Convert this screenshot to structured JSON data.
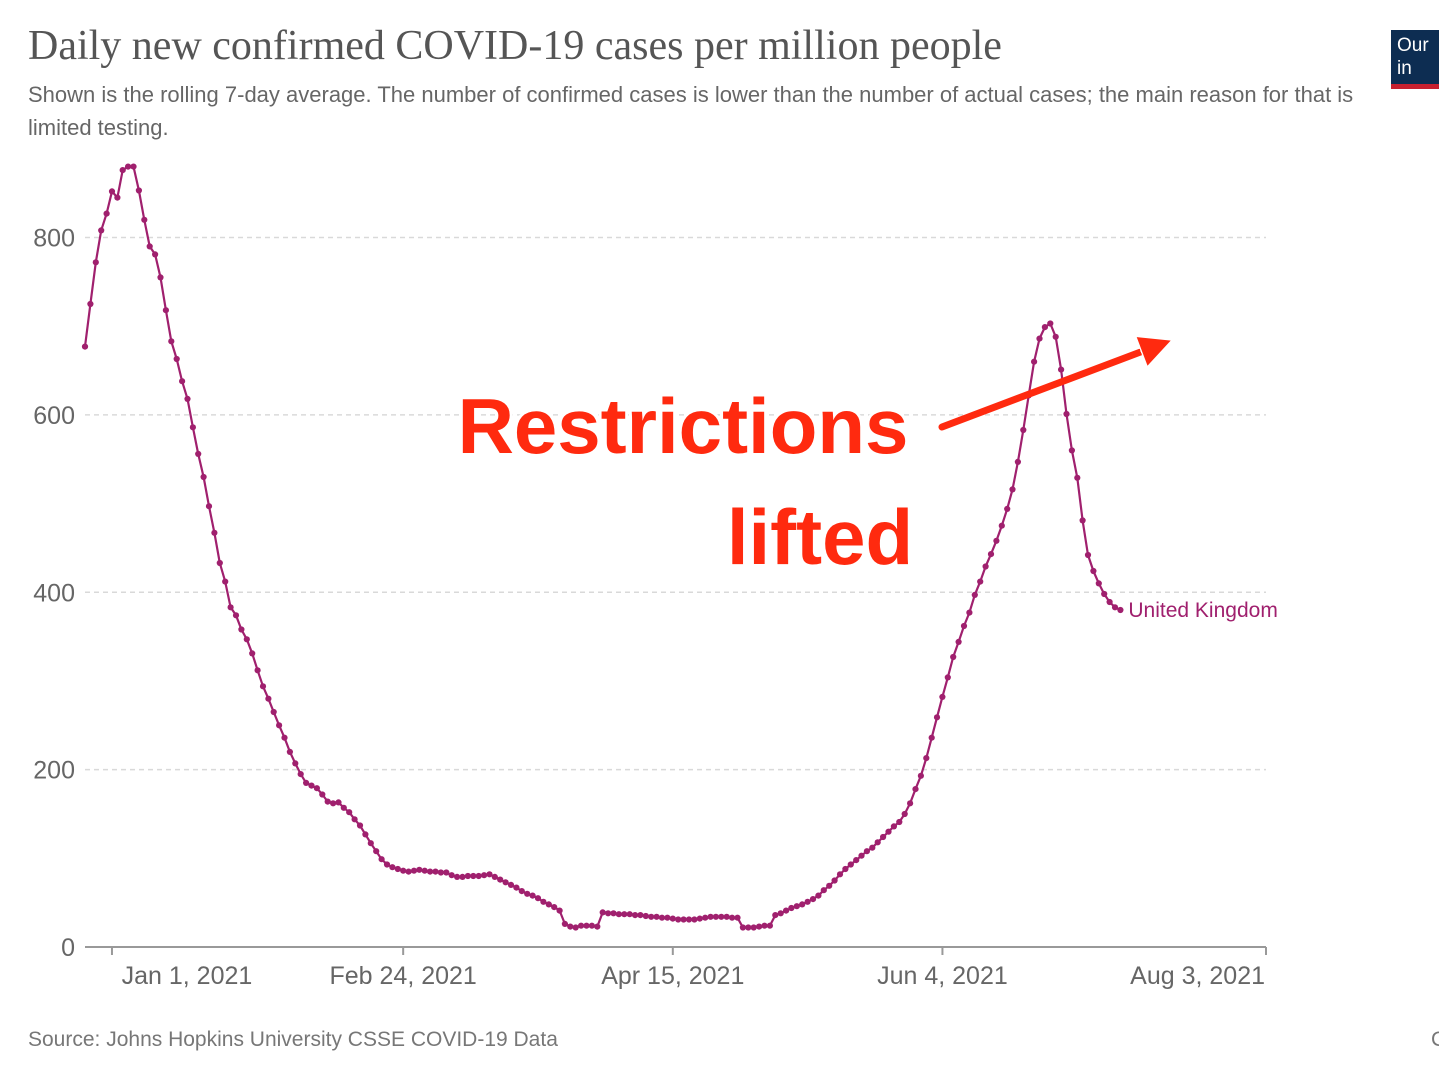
{
  "header": {
    "title": "Daily new confirmed COVID-19 cases per million people",
    "subtitle": "Shown is the rolling 7-day average. The number of confirmed cases is lower than the number of actual cases; the main reason for that is limited testing.",
    "logo_line1": "Our",
    "logo_line2": "in",
    "logo_colors": {
      "background": "#0d2d52",
      "stripe": "#c8202f"
    }
  },
  "footer": {
    "source": "Source: Johns Hopkins University CSSE COVID-19 Data",
    "corner": "C"
  },
  "annotation": {
    "line1": "Restrictions",
    "line2": "lifted",
    "color": "#ff2a0f",
    "arrow_target": {
      "date": "2021-07-17",
      "value": 703
    }
  },
  "chart_data": {
    "type": "line",
    "title": "Daily new confirmed COVID-19 cases per million people",
    "xlabel": "",
    "ylabel": "",
    "x_start": "2020-12-27",
    "x_end": "2021-08-03",
    "ylim": [
      0,
      880
    ],
    "y_ticks": [
      0,
      200,
      400,
      600,
      800
    ],
    "x_ticks": [
      {
        "date": "2021-01-01",
        "label": "Jan 1, 2021"
      },
      {
        "date": "2021-02-24",
        "label": "Feb 24, 2021"
      },
      {
        "date": "2021-04-15",
        "label": "Apr 15, 2021"
      },
      {
        "date": "2021-06-04",
        "label": "Jun 4, 2021"
      },
      {
        "date": "2021-08-03",
        "label": "Aug 3, 2021"
      }
    ],
    "grid": "horizontal-dashed",
    "series": [
      {
        "name": "United Kingdom",
        "color": "#a0206e",
        "points": [
          [
            "2020-12-27",
            677
          ],
          [
            "2020-12-28",
            725
          ],
          [
            "2020-12-29",
            772
          ],
          [
            "2020-12-30",
            808
          ],
          [
            "2020-12-31",
            827
          ],
          [
            "2021-01-01",
            852
          ],
          [
            "2021-01-02",
            845
          ],
          [
            "2021-01-03",
            876
          ],
          [
            "2021-01-04",
            880
          ],
          [
            "2021-01-05",
            880
          ],
          [
            "2021-01-06",
            853
          ],
          [
            "2021-01-07",
            820
          ],
          [
            "2021-01-08",
            790
          ],
          [
            "2021-01-09",
            781
          ],
          [
            "2021-01-10",
            755
          ],
          [
            "2021-01-11",
            718
          ],
          [
            "2021-01-12",
            683
          ],
          [
            "2021-01-13",
            663
          ],
          [
            "2021-01-14",
            638
          ],
          [
            "2021-01-15",
            618
          ],
          [
            "2021-01-16",
            586
          ],
          [
            "2021-01-17",
            556
          ],
          [
            "2021-01-18",
            530
          ],
          [
            "2021-01-19",
            497
          ],
          [
            "2021-01-20",
            467
          ],
          [
            "2021-01-21",
            433
          ],
          [
            "2021-01-22",
            412
          ],
          [
            "2021-01-23",
            383
          ],
          [
            "2021-01-24",
            374
          ],
          [
            "2021-01-25",
            358
          ],
          [
            "2021-01-26",
            347
          ],
          [
            "2021-01-27",
            331
          ],
          [
            "2021-01-28",
            312
          ],
          [
            "2021-01-29",
            294
          ],
          [
            "2021-01-30",
            280
          ],
          [
            "2021-01-31",
            265
          ],
          [
            "2021-02-01",
            250
          ],
          [
            "2021-02-02",
            236
          ],
          [
            "2021-02-03",
            220
          ],
          [
            "2021-02-04",
            207
          ],
          [
            "2021-02-05",
            195
          ],
          [
            "2021-02-06",
            185
          ],
          [
            "2021-02-07",
            182
          ],
          [
            "2021-02-08",
            179
          ],
          [
            "2021-02-09",
            172
          ],
          [
            "2021-02-10",
            164
          ],
          [
            "2021-02-11",
            162
          ],
          [
            "2021-02-12",
            163
          ],
          [
            "2021-02-13",
            157
          ],
          [
            "2021-02-14",
            152
          ],
          [
            "2021-02-15",
            144
          ],
          [
            "2021-02-16",
            137
          ],
          [
            "2021-02-17",
            127
          ],
          [
            "2021-02-18",
            117
          ],
          [
            "2021-02-19",
            108
          ],
          [
            "2021-02-20",
            99
          ],
          [
            "2021-02-21",
            93
          ],
          [
            "2021-02-22",
            90
          ],
          [
            "2021-02-23",
            88
          ],
          [
            "2021-02-24",
            86
          ],
          [
            "2021-02-25",
            85
          ],
          [
            "2021-02-26",
            86
          ],
          [
            "2021-02-27",
            87
          ],
          [
            "2021-02-28",
            86
          ],
          [
            "2021-03-01",
            85
          ],
          [
            "2021-03-02",
            85
          ],
          [
            "2021-03-03",
            84
          ],
          [
            "2021-03-04",
            84
          ],
          [
            "2021-03-05",
            81
          ],
          [
            "2021-03-06",
            79
          ],
          [
            "2021-03-07",
            79
          ],
          [
            "2021-03-08",
            80
          ],
          [
            "2021-03-09",
            80
          ],
          [
            "2021-03-10",
            80
          ],
          [
            "2021-03-11",
            81
          ],
          [
            "2021-03-12",
            82
          ],
          [
            "2021-03-13",
            79
          ],
          [
            "2021-03-14",
            76
          ],
          [
            "2021-03-15",
            73
          ],
          [
            "2021-03-16",
            70
          ],
          [
            "2021-03-17",
            67
          ],
          [
            "2021-03-18",
            63
          ],
          [
            "2021-03-19",
            60
          ],
          [
            "2021-03-20",
            58
          ],
          [
            "2021-03-21",
            55
          ],
          [
            "2021-03-22",
            51
          ],
          [
            "2021-03-23",
            48
          ],
          [
            "2021-03-24",
            45
          ],
          [
            "2021-03-25",
            41
          ],
          [
            "2021-03-26",
            26
          ],
          [
            "2021-03-27",
            23
          ],
          [
            "2021-03-28",
            22
          ],
          [
            "2021-03-29",
            24
          ],
          [
            "2021-03-30",
            24
          ],
          [
            "2021-03-31",
            24
          ],
          [
            "2021-04-01",
            23
          ],
          [
            "2021-04-02",
            39
          ],
          [
            "2021-04-03",
            38
          ],
          [
            "2021-04-04",
            38
          ],
          [
            "2021-04-05",
            37
          ],
          [
            "2021-04-06",
            37
          ],
          [
            "2021-04-07",
            37
          ],
          [
            "2021-04-08",
            36
          ],
          [
            "2021-04-09",
            36
          ],
          [
            "2021-04-10",
            35
          ],
          [
            "2021-04-11",
            34
          ],
          [
            "2021-04-12",
            34
          ],
          [
            "2021-04-13",
            33
          ],
          [
            "2021-04-14",
            33
          ],
          [
            "2021-04-15",
            32
          ],
          [
            "2021-04-16",
            31
          ],
          [
            "2021-04-17",
            31
          ],
          [
            "2021-04-18",
            31
          ],
          [
            "2021-04-19",
            31
          ],
          [
            "2021-04-20",
            32
          ],
          [
            "2021-04-21",
            33
          ],
          [
            "2021-04-22",
            34
          ],
          [
            "2021-04-23",
            34
          ],
          [
            "2021-04-24",
            34
          ],
          [
            "2021-04-25",
            34
          ],
          [
            "2021-04-26",
            33
          ],
          [
            "2021-04-27",
            33
          ],
          [
            "2021-04-28",
            22
          ],
          [
            "2021-04-29",
            22
          ],
          [
            "2021-04-30",
            22
          ],
          [
            "2021-05-01",
            23
          ],
          [
            "2021-05-02",
            24
          ],
          [
            "2021-05-03",
            24
          ],
          [
            "2021-05-04",
            36
          ],
          [
            "2021-05-05",
            38
          ],
          [
            "2021-05-06",
            41
          ],
          [
            "2021-05-07",
            44
          ],
          [
            "2021-05-08",
            46
          ],
          [
            "2021-05-09",
            48
          ],
          [
            "2021-05-10",
            51
          ],
          [
            "2021-05-11",
            54
          ],
          [
            "2021-05-12",
            58
          ],
          [
            "2021-05-13",
            64
          ],
          [
            "2021-05-14",
            69
          ],
          [
            "2021-05-15",
            75
          ],
          [
            "2021-05-16",
            82
          ],
          [
            "2021-05-17",
            88
          ],
          [
            "2021-05-18",
            93
          ],
          [
            "2021-05-19",
            98
          ],
          [
            "2021-05-20",
            103
          ],
          [
            "2021-05-21",
            108
          ],
          [
            "2021-05-22",
            112
          ],
          [
            "2021-05-23",
            118
          ],
          [
            "2021-05-24",
            124
          ],
          [
            "2021-05-25",
            130
          ],
          [
            "2021-05-26",
            136
          ],
          [
            "2021-05-27",
            141
          ],
          [
            "2021-05-28",
            150
          ],
          [
            "2021-05-29",
            162
          ],
          [
            "2021-05-30",
            178
          ],
          [
            "2021-05-31",
            193
          ],
          [
            "2021-06-01",
            213
          ],
          [
            "2021-06-02",
            236
          ],
          [
            "2021-06-03",
            259
          ],
          [
            "2021-06-04",
            282
          ],
          [
            "2021-06-05",
            304
          ],
          [
            "2021-06-06",
            327
          ],
          [
            "2021-06-07",
            344
          ],
          [
            "2021-06-08",
            362
          ],
          [
            "2021-06-09",
            377
          ],
          [
            "2021-06-10",
            397
          ],
          [
            "2021-06-11",
            412
          ],
          [
            "2021-06-12",
            429
          ],
          [
            "2021-06-13",
            443
          ],
          [
            "2021-06-14",
            458
          ],
          [
            "2021-06-15",
            475
          ],
          [
            "2021-06-16",
            494
          ],
          [
            "2021-06-17",
            516
          ],
          [
            "2021-06-18",
            547
          ],
          [
            "2021-06-19",
            583
          ],
          [
            "2021-06-20",
            622
          ],
          [
            "2021-06-21",
            660
          ],
          [
            "2021-06-22",
            686
          ],
          [
            "2021-06-23",
            699
          ],
          [
            "2021-06-24",
            703
          ],
          [
            "2021-06-25",
            688
          ],
          [
            "2021-06-26",
            651
          ],
          [
            "2021-06-27",
            601
          ],
          [
            "2021-06-28",
            560
          ],
          [
            "2021-06-29",
            529
          ],
          [
            "2021-06-30",
            481
          ],
          [
            "2021-07-01",
            442
          ],
          [
            "2021-07-02",
            424
          ],
          [
            "2021-07-03",
            410
          ],
          [
            "2021-07-04",
            398
          ],
          [
            "2021-07-05",
            389
          ],
          [
            "2021-07-06",
            383
          ],
          [
            "2021-07-07",
            380
          ]
        ]
      }
    ],
    "series_label": "United Kingdom"
  }
}
